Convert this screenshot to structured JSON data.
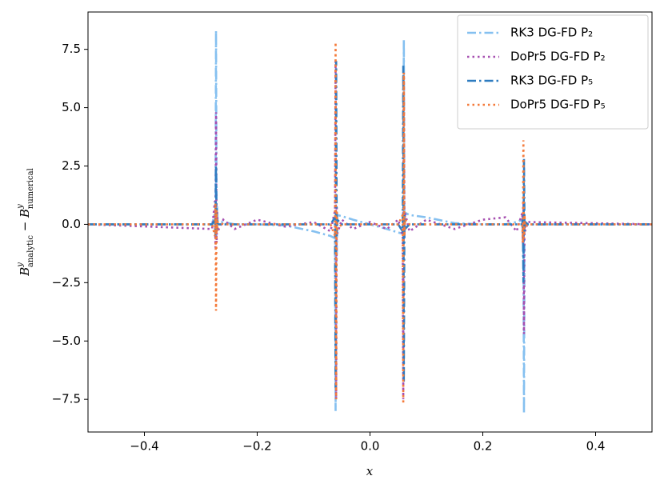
{
  "chart_data": {
    "type": "line",
    "xlabel": "x",
    "ylabel": {
      "left": {
        "base": "B",
        "sup": "y",
        "sub": "analytic"
      },
      "operator": "−",
      "right": {
        "base": "B",
        "sup": "y",
        "sub": "numerical"
      }
    },
    "xlim": [
      -0.5,
      0.5
    ],
    "ylim": [
      -8.9,
      9.1
    ],
    "xticks": [
      {
        "value": -0.4,
        "label": "−0.4"
      },
      {
        "value": -0.2,
        "label": "−0.2"
      },
      {
        "value": 0,
        "label": "0.0"
      },
      {
        "value": 0.2,
        "label": "0.2"
      },
      {
        "value": 0.4,
        "label": "0.4"
      }
    ],
    "yticks": [
      {
        "value": -7.5,
        "label": "−7.5"
      },
      {
        "value": -5,
        "label": "−5.0"
      },
      {
        "value": -2.5,
        "label": "−2.5"
      },
      {
        "value": 0,
        "label": "0.0"
      },
      {
        "value": 2.5,
        "label": "2.5"
      },
      {
        "value": 5,
        "label": "5.0"
      },
      {
        "value": 7.5,
        "label": "7.5"
      }
    ],
    "legend": "upper right",
    "x": [
      -0.5,
      -0.28,
      -0.275,
      -0.274,
      -0.273,
      -0.272,
      -0.271,
      -0.27,
      -0.26,
      -0.24,
      -0.2,
      -0.15,
      -0.1,
      -0.07,
      -0.062,
      -0.061,
      -0.06,
      -0.059,
      -0.058,
      -0.05,
      -0.03,
      0,
      0.03,
      0.05,
      0.058,
      0.059,
      0.06,
      0.061,
      0.062,
      0.07,
      0.1,
      0.15,
      0.2,
      0.24,
      0.26,
      0.27,
      0.271,
      0.272,
      0.273,
      0.274,
      0.275,
      0.28,
      0.5
    ],
    "series": [
      {
        "name": "RK3 DG-FD P₂",
        "color": "#85c0f0",
        "linestyle": "dashdot",
        "values": [
          0,
          0,
          0.5,
          -0.3,
          8.3,
          -0.2,
          0.8,
          0.1,
          0.1,
          0,
          0,
          -0.05,
          -0.3,
          -0.5,
          -0.6,
          -8.0,
          0.5,
          -1.5,
          0.4,
          0.35,
          0.2,
          0,
          -0.2,
          -0.35,
          -0.4,
          1.5,
          7.9,
          -0.5,
          0.5,
          0.4,
          0.3,
          0.05,
          0,
          0,
          0.1,
          0.2,
          -0.5,
          0.3,
          -8.1,
          0.2,
          -0.1,
          0,
          0
        ]
      },
      {
        "name": "DoPr5 DG-FD P₂",
        "color": "#a64fb0",
        "linestyle": "dotted",
        "values": [
          0,
          -0.2,
          1.0,
          -1.0,
          4.8,
          -0.8,
          0.6,
          -0.3,
          0.2,
          -0.2,
          0.2,
          -0.1,
          0.1,
          -0.3,
          0.6,
          7.0,
          -7.5,
          0.8,
          -0.4,
          0.2,
          -0.2,
          0.1,
          -0.2,
          0.2,
          -0.5,
          -7.5,
          6.5,
          -0.6,
          0.5,
          -0.3,
          0.2,
          -0.2,
          0.2,
          0.3,
          -0.3,
          0.5,
          -0.8,
          1.0,
          -4.7,
          0.4,
          -0.3,
          0.1,
          0
        ]
      },
      {
        "name": "RK3 DG-FD P₅",
        "color": "#2e7cc0",
        "linestyle": "dashdot",
        "values": [
          0,
          0,
          0.2,
          -0.5,
          2.5,
          -0.3,
          0.2,
          0,
          0,
          0,
          0,
          0,
          0,
          0,
          0.3,
          -7.0,
          7.0,
          -0.5,
          0.2,
          0,
          0,
          0,
          0,
          0,
          -0.3,
          6.8,
          -6.8,
          0.4,
          -0.2,
          0,
          0,
          0,
          0,
          0,
          0,
          0,
          0.3,
          -2.5,
          2.8,
          -0.3,
          0.1,
          0,
          0
        ]
      },
      {
        "name": "DoPr5 DG-FD P₅",
        "color": "#f47a3a",
        "linestyle": "dotted",
        "values": [
          0,
          0,
          -0.5,
          0.9,
          -3.7,
          0.6,
          -0.3,
          0.1,
          0,
          0,
          0,
          0,
          0,
          0,
          -0.5,
          7.8,
          -7.5,
          0.6,
          -0.2,
          0,
          0,
          0,
          0,
          0,
          0.4,
          -7.7,
          6.5,
          -0.5,
          0.2,
          0,
          0,
          0,
          0,
          0,
          0,
          0,
          -0.8,
          3.6,
          -0.6,
          0.4,
          -0.1,
          0,
          0
        ]
      }
    ]
  }
}
